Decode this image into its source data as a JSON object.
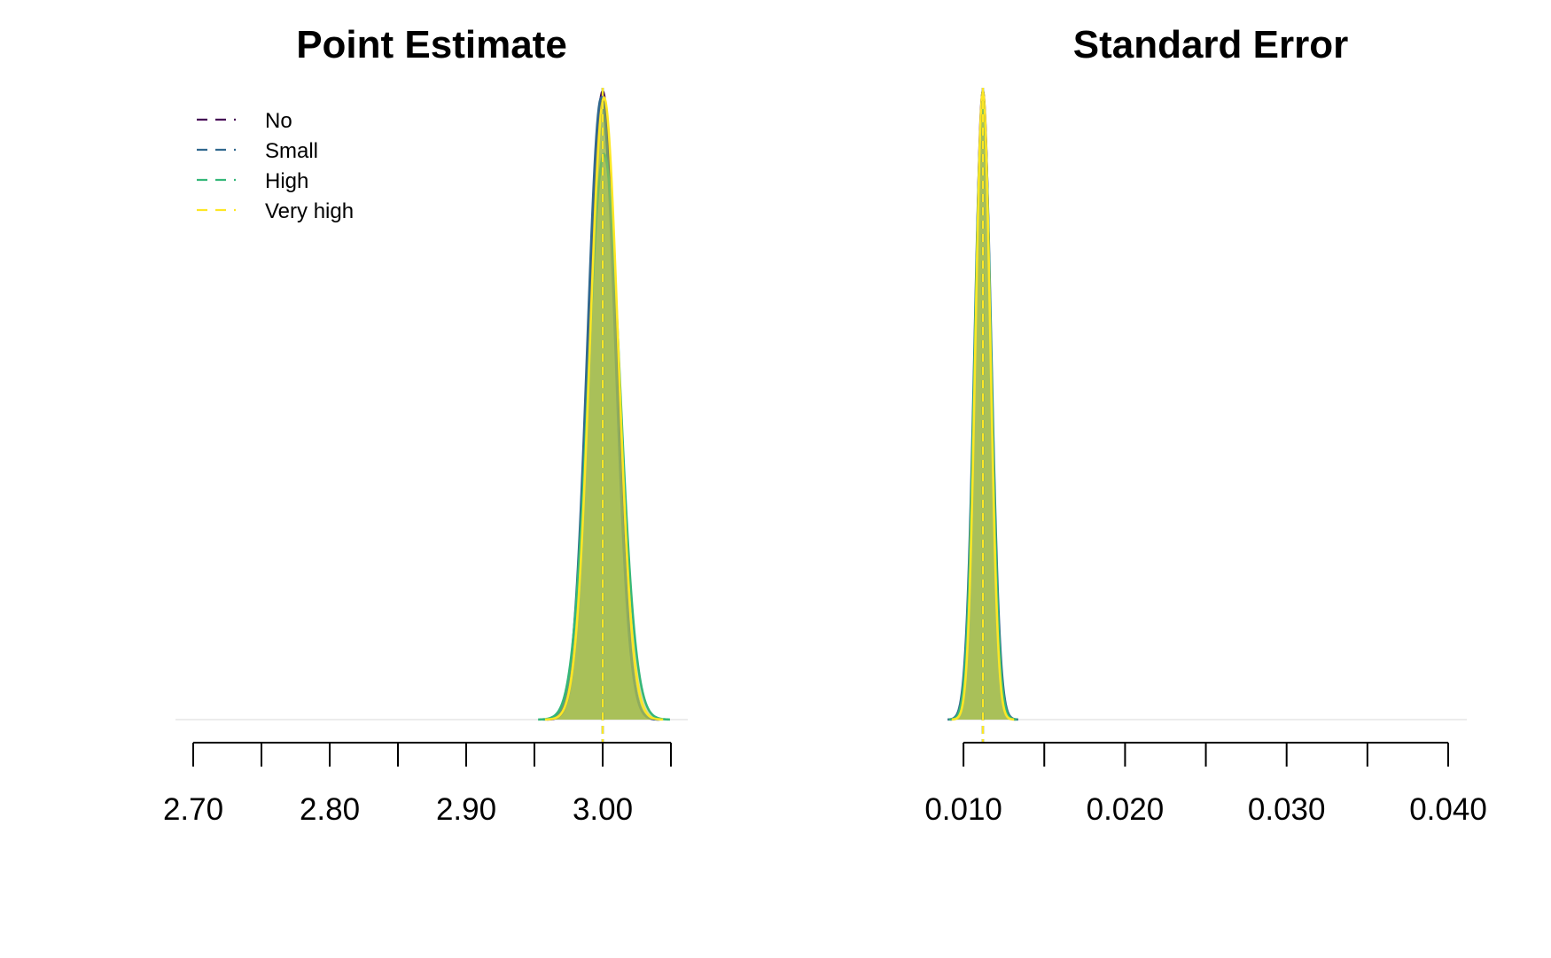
{
  "chart_data": [
    {
      "type": "area",
      "title": "Point Estimate",
      "xlabel": "",
      "ylabel": "",
      "xlim": [
        2.7,
        3.05
      ],
      "x_ticks": [
        2.7,
        2.75,
        2.8,
        2.85,
        2.9,
        2.95,
        3.0,
        3.05
      ],
      "x_tick_labels": [
        {
          "value": 2.7,
          "label": "2.70"
        },
        {
          "value": 2.8,
          "label": "2.80"
        },
        {
          "value": 2.9,
          "label": "2.90"
        },
        {
          "value": 3.0,
          "label": "3.00"
        }
      ],
      "grid": false,
      "legend_position": "top-left",
      "series": [
        {
          "name": "No",
          "color": "#440154",
          "mean": 3.0,
          "sd": 0.0098,
          "peak": 1.0,
          "ref_line": 3.0
        },
        {
          "name": "Small",
          "color": "#31688E",
          "mean": 2.999,
          "sd": 0.0102,
          "peak": 0.99,
          "ref_line": 3.0
        },
        {
          "name": "High",
          "color": "#35B779",
          "mean": 3.001,
          "sd": 0.0115,
          "peak": 0.9,
          "ref_line": 3.0
        },
        {
          "name": "Very high",
          "color": "#FDE725",
          "mean": 3.001,
          "sd": 0.0103,
          "peak": 0.99,
          "ref_line": 3.0
        }
      ],
      "fill_color": "#a6bd52"
    },
    {
      "type": "area",
      "title": "Standard Error",
      "xlabel": "",
      "ylabel": "",
      "xlim": [
        0.0095,
        0.04
      ],
      "x_ticks": [
        0.01,
        0.015,
        0.02,
        0.025,
        0.03,
        0.035,
        0.04
      ],
      "x_tick_labels": [
        {
          "value": 0.01,
          "label": "0.010"
        },
        {
          "value": 0.02,
          "label": "0.020"
        },
        {
          "value": 0.03,
          "label": "0.030"
        },
        {
          "value": 0.04,
          "label": "0.040"
        }
      ],
      "grid": false,
      "series": [
        {
          "name": "No",
          "color": "#440154",
          "mean": 0.0112,
          "sd": 0.00048,
          "peak": 1.0,
          "ref_line": 0.0112
        },
        {
          "name": "Small",
          "color": "#31688E",
          "mean": 0.0112,
          "sd": 0.00052,
          "peak": 0.98,
          "ref_line": 0.0112
        },
        {
          "name": "High",
          "color": "#35B779",
          "mean": 0.0112,
          "sd": 0.0005,
          "peak": 0.98,
          "ref_line": 0.0112
        },
        {
          "name": "Very high",
          "color": "#FDE725",
          "mean": 0.0112,
          "sd": 0.00046,
          "peak": 1.0,
          "ref_line": 0.0112
        }
      ],
      "fill_color": "#a6bd52"
    }
  ]
}
